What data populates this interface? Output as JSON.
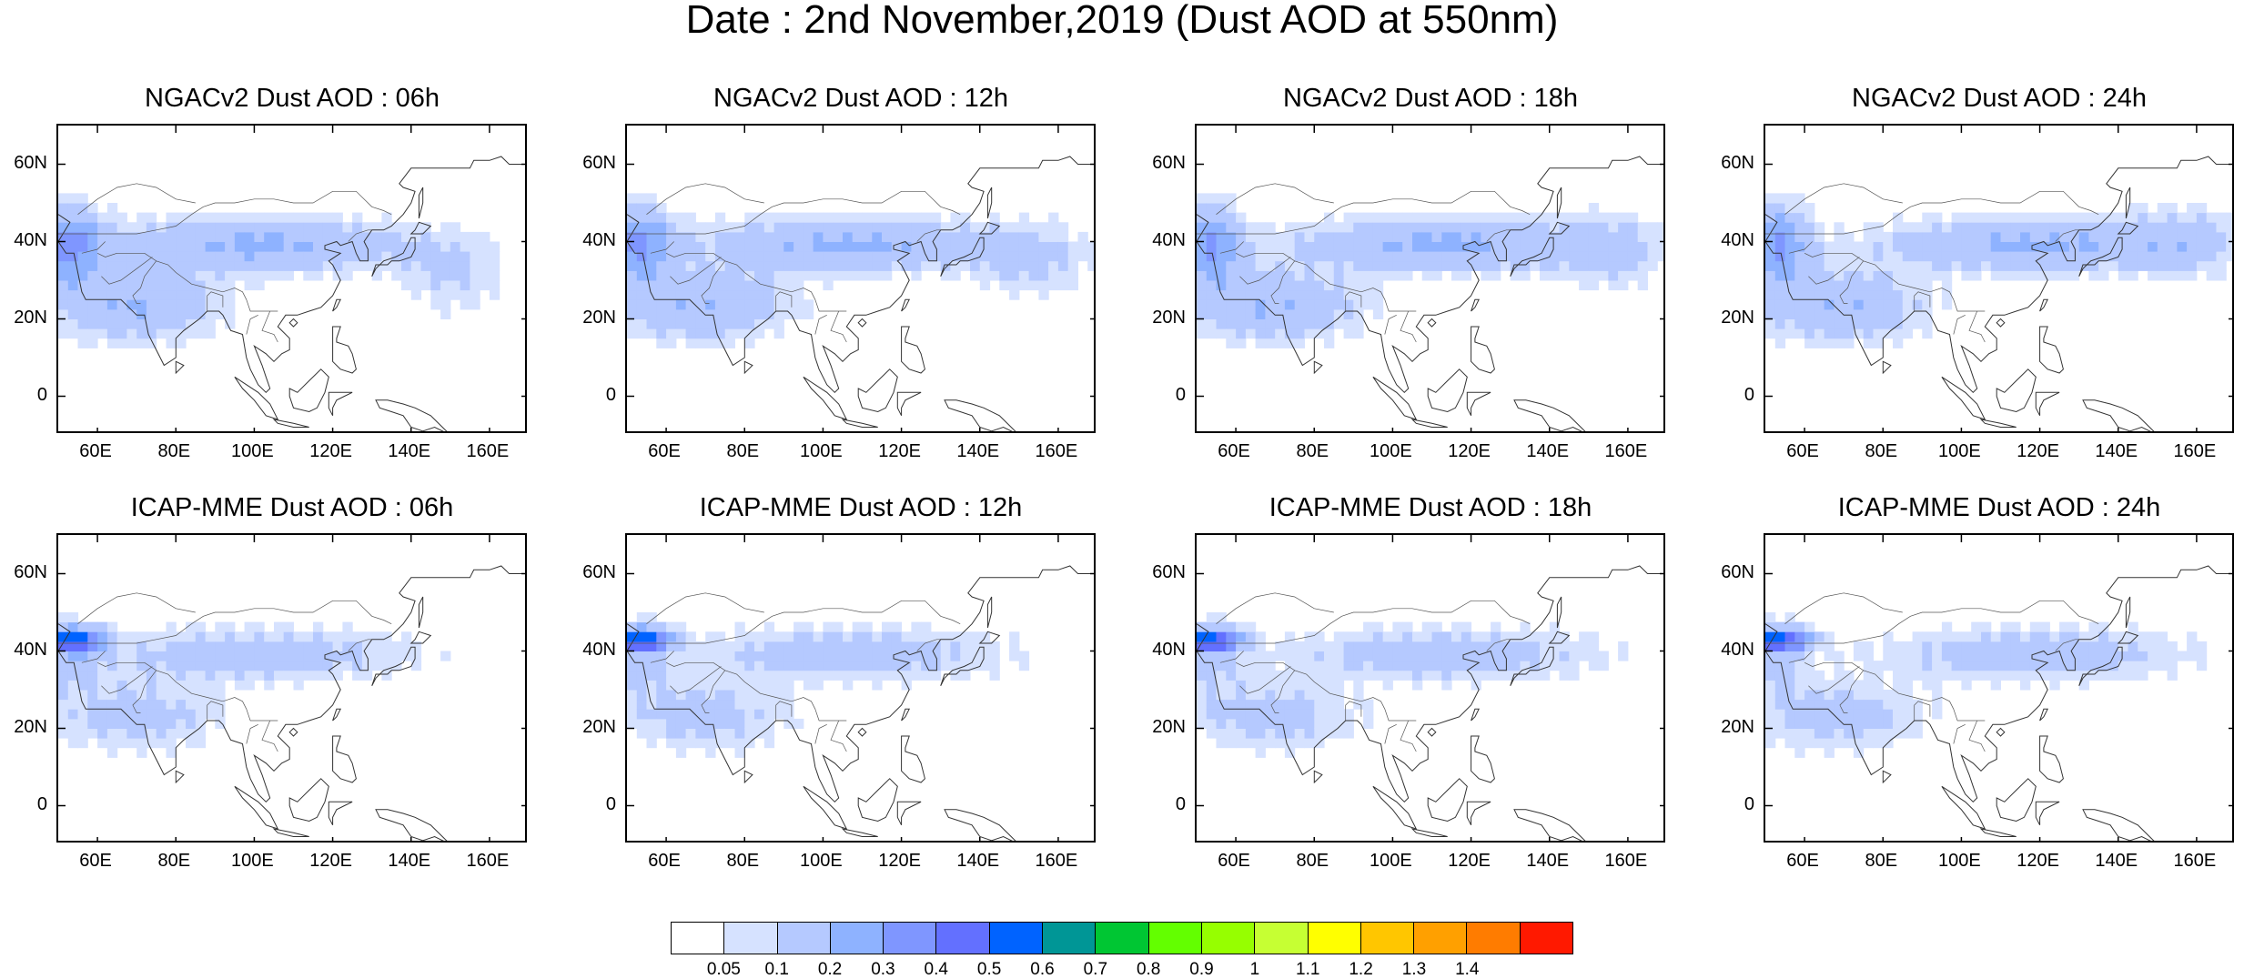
{
  "title": "Date : 2nd November,2019 (Dust AOD at 550nm)",
  "panels": [
    {
      "title": "NGACv2 Dust AOD : 06h"
    },
    {
      "title": "NGACv2 Dust AOD : 12h"
    },
    {
      "title": "NGACv2 Dust AOD : 18h"
    },
    {
      "title": "NGACv2 Dust AOD : 24h"
    },
    {
      "title": "ICAP-MME Dust AOD : 06h"
    },
    {
      "title": "ICAP-MME Dust AOD : 12h"
    },
    {
      "title": "ICAP-MME Dust AOD : 18h"
    },
    {
      "title": "ICAP-MME Dust AOD : 24h"
    }
  ],
  "axes": {
    "lat_labels": [
      "60N",
      "40N",
      "20N",
      "0"
    ],
    "lat_values": [
      60,
      40,
      20,
      0
    ],
    "lon_labels": [
      "60E",
      "80E",
      "100E",
      "120E",
      "140E",
      "160E"
    ],
    "lon_values": [
      60,
      80,
      100,
      120,
      140,
      160
    ],
    "lon_range": [
      50,
      170
    ],
    "lat_range": [
      -10,
      70
    ]
  },
  "colorbar": {
    "labels": [
      "0.05",
      "0.1",
      "0.2",
      "0.3",
      "0.4",
      "0.5",
      "0.6",
      "0.7",
      "0.8",
      "0.9",
      "1",
      "1.1",
      "1.2",
      "1.3",
      "1.4"
    ],
    "colors": [
      "#ffffff",
      "#d6e2ff",
      "#b5c9ff",
      "#8eb2ff",
      "#7f96ff",
      "#6370ff",
      "#0063ff",
      "#009696",
      "#00c633",
      "#63ff00",
      "#96ff00",
      "#c6ff33",
      "#ffff00",
      "#ffc600",
      "#ffa000",
      "#ff7c00",
      "#ff1900"
    ]
  },
  "chart_data": {
    "type": "heatmap",
    "variable": "Dust AOD at 550nm",
    "legend_placement": "bottom",
    "fields": [
      {
        "label": "NGACv2 Dust AOD : 06h",
        "dominant_range": [
          0.05,
          0.3
        ],
        "max_range": [
          0.3,
          0.4
        ]
      },
      {
        "label": "NGACv2 Dust AOD : 12h",
        "dominant_range": [
          0.05,
          0.3
        ],
        "max_range": [
          0.3,
          0.4
        ]
      },
      {
        "label": "NGACv2 Dust AOD : 18h",
        "dominant_range": [
          0.05,
          0.3
        ],
        "max_range": [
          0.3,
          0.4
        ]
      },
      {
        "label": "NGACv2 Dust AOD : 24h",
        "dominant_range": [
          0.05,
          0.3
        ],
        "max_range": [
          0.3,
          0.4
        ]
      },
      {
        "label": "ICAP-MME Dust AOD : 06h",
        "dominant_range": [
          0.05,
          0.2
        ],
        "max_range": [
          0.4,
          0.5
        ]
      },
      {
        "label": "ICAP-MME Dust AOD : 12h",
        "dominant_range": [
          0.05,
          0.2
        ],
        "max_range": [
          0.5,
          0.6
        ]
      },
      {
        "label": "ICAP-MME Dust AOD : 18h",
        "dominant_range": [
          0.05,
          0.2
        ],
        "max_range": [
          0.5,
          0.6
        ]
      },
      {
        "label": "ICAP-MME Dust AOD : 24h",
        "dominant_range": [
          0.05,
          0.2
        ],
        "max_range": [
          0.4,
          0.5
        ]
      }
    ]
  }
}
